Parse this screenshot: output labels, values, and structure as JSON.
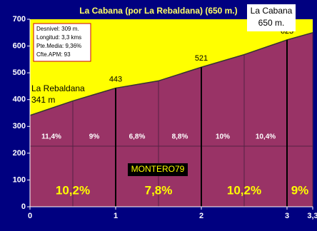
{
  "chart_data": {
    "type": "profile",
    "title": "La Cabana (por La Rebaldana) (650 m.)",
    "x": [
      0,
      0.5,
      1,
      1.5,
      2,
      2.5,
      3,
      3.3
    ],
    "values": [
      341,
      395,
      443,
      470,
      521,
      568,
      623,
      650
    ],
    "point_labels": [
      null,
      null,
      true,
      null,
      true,
      null,
      true,
      null
    ],
    "start_annotation": [
      "La Rebaldana",
      "341 m"
    ],
    "end_annotation": [
      "La Cabana",
      "650 m."
    ],
    "half_km_gradients": {
      "values": [
        11.4,
        9,
        6.8,
        8.8,
        10,
        10.4
      ],
      "value_labels": [
        "11,4%",
        "9%",
        "6,8%",
        "8,8%",
        "10%",
        "10,4%"
      ]
    },
    "km_gradients": {
      "values": [
        10.2,
        7.8,
        10.2,
        9
      ],
      "value_labels": [
        "10,2%",
        "7,8%",
        "10,2%",
        "9%"
      ]
    },
    "info": [
      "Desnivel: 309 m.",
      "Longitud: 3,3 kms",
      "Pte.Media: 9,36%",
      "Cfte.APM: 93"
    ],
    "watermark": "MONTERO79",
    "xlim": [
      0,
      3.3
    ],
    "ylim": [
      0,
      700
    ],
    "xticks": [
      0,
      1,
      2,
      3,
      {
        "value": 3.3,
        "label": "3,3"
      }
    ],
    "yticks": [
      0,
      100,
      200,
      300,
      400,
      500,
      600,
      700
    ],
    "colors": {
      "sky": "#ffff00",
      "fill": "#993366",
      "background": "#000080"
    }
  }
}
